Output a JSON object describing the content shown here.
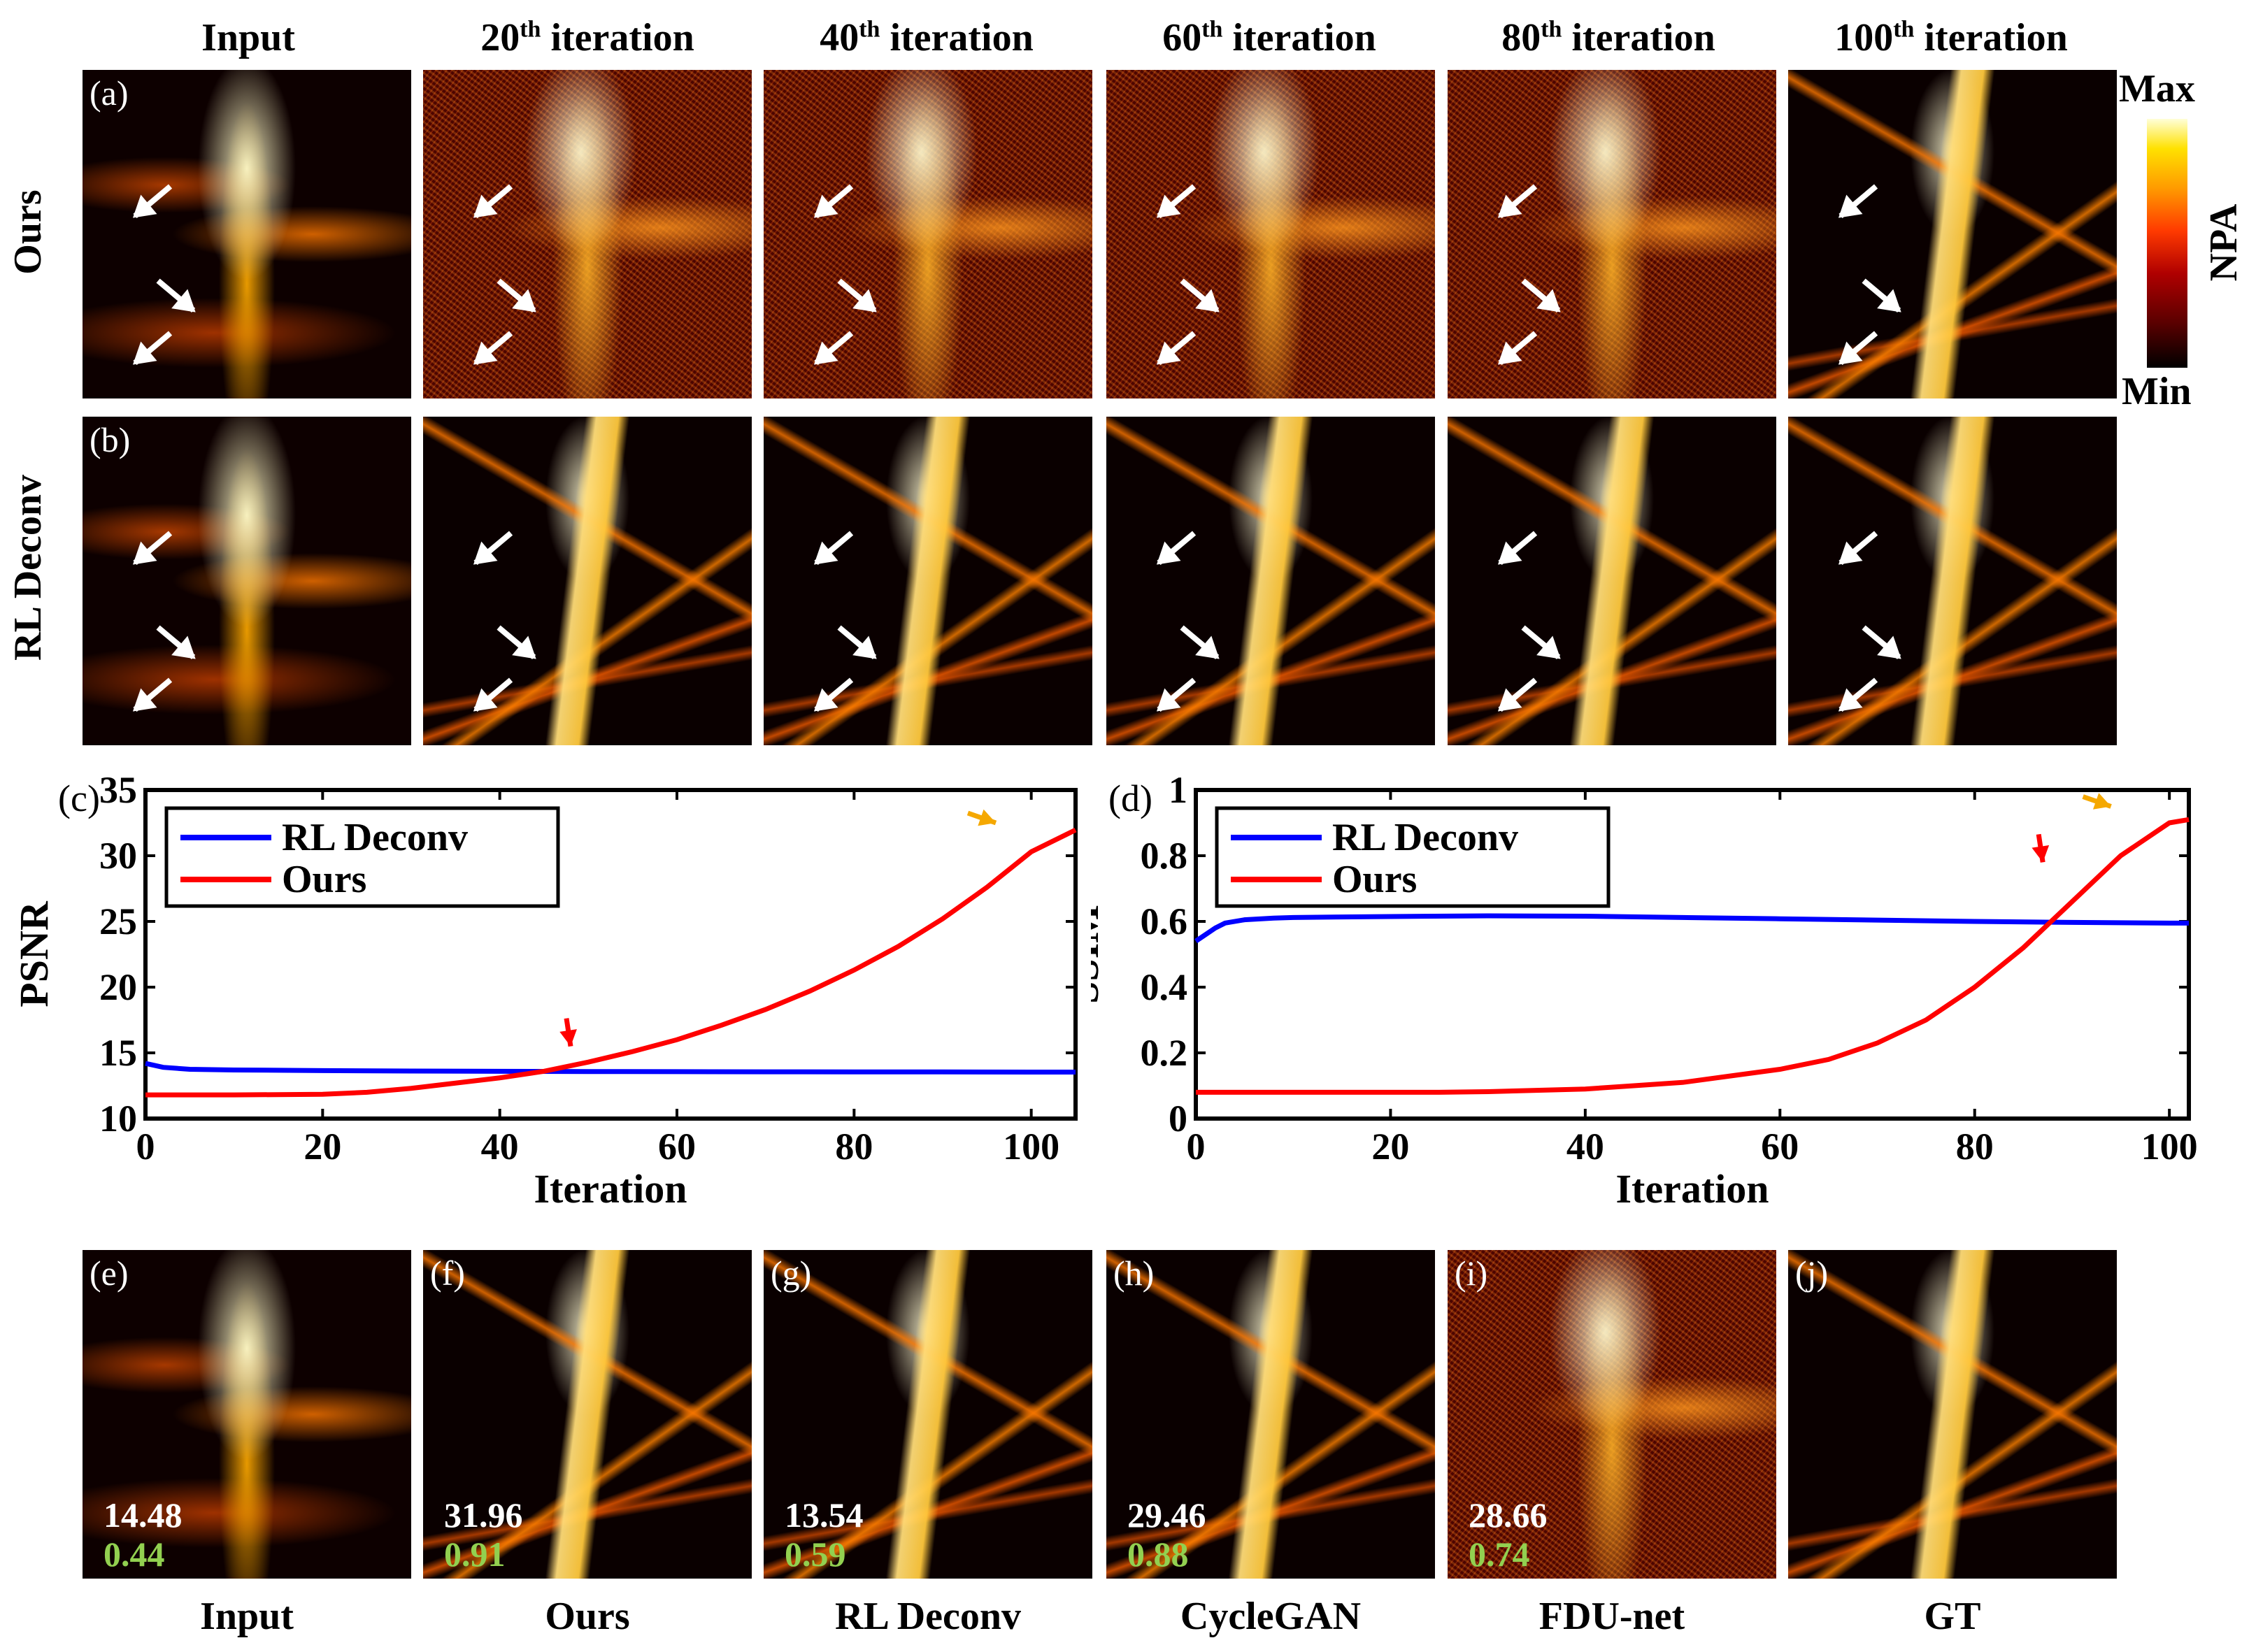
{
  "column_headers": [
    {
      "text": "Input",
      "sup": "",
      "rest": ""
    },
    {
      "text": "20",
      "sup": "th",
      "rest": " iteration"
    },
    {
      "text": "40",
      "sup": "th",
      "rest": " iteration"
    },
    {
      "text": "60",
      "sup": "th",
      "rest": " iteration"
    },
    {
      "text": "80",
      "sup": "th",
      "rest": " iteration"
    },
    {
      "text": "100",
      "sup": "th",
      "rest": " iteration"
    }
  ],
  "row_labels": {
    "ours": "Ours",
    "rl": "RL Deconv"
  },
  "panel_tags": {
    "a": "(a)",
    "b": "(b)",
    "c": "(c)",
    "d": "(d)",
    "e": "(e)",
    "f": "(f)",
    "g": "(g)",
    "h": "(h)",
    "i": "(i)",
    "j": "(j)"
  },
  "colorbar": {
    "max": "Max",
    "min": "Min",
    "label": "NPA",
    "colors": [
      "#000000",
      "#b00000",
      "#ff3a00",
      "#ff9a00",
      "#ffe100",
      "#ffffd8"
    ]
  },
  "bottom_row": [
    {
      "tag": "(e)",
      "label": "Input",
      "psnr": "14.48",
      "ssim": "0.44"
    },
    {
      "tag": "(f)",
      "label": "Ours",
      "psnr": "31.96",
      "ssim": "0.91"
    },
    {
      "tag": "(g)",
      "label": "RL Deconv",
      "psnr": "13.54",
      "ssim": "0.59"
    },
    {
      "tag": "(h)",
      "label": "CycleGAN",
      "psnr": "29.46",
      "ssim": "0.88"
    },
    {
      "tag": "(i)",
      "label": "FDU-net",
      "psnr": "28.66",
      "ssim": "0.74"
    },
    {
      "tag": "(j)",
      "label": "GT",
      "psnr": "",
      "ssim": ""
    }
  ],
  "chart_data": [
    {
      "type": "line",
      "panel": "(c)",
      "xlabel": "Iteration",
      "ylabel": "PSNR",
      "xlim": [
        0,
        105
      ],
      "ylim": [
        10,
        35
      ],
      "xticks": [
        0,
        20,
        40,
        60,
        80,
        100
      ],
      "yticks": [
        10,
        15,
        20,
        25,
        30,
        35
      ],
      "legend": "top-left",
      "series": [
        {
          "name": "RL Deconv",
          "color": "#0000ff",
          "x": [
            0,
            2,
            5,
            10,
            20,
            30,
            40,
            50,
            60,
            70,
            80,
            90,
            100,
            105
          ],
          "y": [
            14.2,
            13.9,
            13.75,
            13.7,
            13.65,
            13.62,
            13.6,
            13.58,
            13.57,
            13.56,
            13.55,
            13.55,
            13.54,
            13.54
          ]
        },
        {
          "name": "Ours",
          "color": "#ff0000",
          "x": [
            0,
            10,
            20,
            25,
            30,
            35,
            40,
            45,
            50,
            55,
            60,
            65,
            70,
            75,
            80,
            85,
            90,
            95,
            100,
            105
          ],
          "y": [
            11.8,
            11.8,
            11.85,
            12.0,
            12.3,
            12.7,
            13.1,
            13.6,
            14.3,
            15.1,
            16.0,
            17.1,
            18.3,
            19.7,
            21.3,
            23.1,
            25.2,
            27.6,
            30.3,
            31.96
          ]
        }
      ],
      "annotations": [
        {
          "type": "arrow",
          "color": "#ff0000",
          "x": 48,
          "y": 15.5
        },
        {
          "type": "arrow",
          "color": "#f5a800",
          "x": 96,
          "y": 32.5
        }
      ]
    },
    {
      "type": "line",
      "panel": "(d)",
      "xlabel": "Iteration",
      "ylabel": "SSIM",
      "xlim": [
        0,
        102
      ],
      "ylim": [
        0,
        1
      ],
      "xticks": [
        0,
        20,
        40,
        60,
        80,
        100
      ],
      "yticks": [
        0,
        0.2,
        0.4,
        0.6,
        0.8,
        1
      ],
      "legend": "top-left",
      "series": [
        {
          "name": "RL Deconv",
          "color": "#0000ff",
          "x": [
            0,
            1,
            2,
            3,
            5,
            8,
            10,
            20,
            30,
            40,
            50,
            60,
            70,
            80,
            90,
            100,
            102
          ],
          "y": [
            0.54,
            0.56,
            0.58,
            0.595,
            0.605,
            0.61,
            0.612,
            0.615,
            0.617,
            0.616,
            0.612,
            0.608,
            0.604,
            0.6,
            0.597,
            0.595,
            0.595
          ]
        },
        {
          "name": "Ours",
          "color": "#ff0000",
          "x": [
            0,
            10,
            20,
            25,
            30,
            40,
            45,
            50,
            55,
            60,
            65,
            70,
            75,
            80,
            85,
            90,
            95,
            100,
            102
          ],
          "y": [
            0.08,
            0.08,
            0.08,
            0.08,
            0.082,
            0.09,
            0.1,
            0.11,
            0.13,
            0.15,
            0.18,
            0.23,
            0.3,
            0.4,
            0.52,
            0.66,
            0.8,
            0.9,
            0.91
          ]
        }
      ],
      "annotations": [
        {
          "type": "arrow",
          "color": "#ff0000",
          "x": 87,
          "y": 0.78
        },
        {
          "type": "arrow",
          "color": "#f5a800",
          "x": 94,
          "y": 0.95
        }
      ]
    }
  ]
}
